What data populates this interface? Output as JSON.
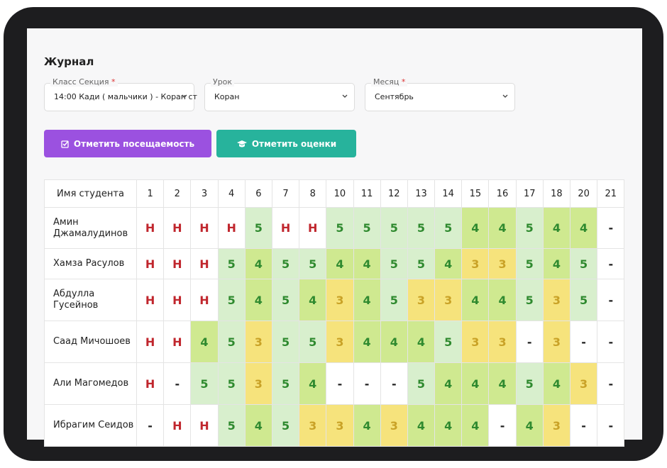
{
  "header": {
    "title": "Журнал"
  },
  "form": {
    "fields": [
      {
        "label": "Класс Секция",
        "marker": "*",
        "value": "14:00 Кади ( мальчики ) - Коран ст"
      },
      {
        "label": "Урок",
        "value": "Коран"
      },
      {
        "label": "Месяц",
        "marker": "*",
        "value": "Сентябрь"
      }
    ]
  },
  "buttons": [
    {
      "label": "Отметить посещаемость",
      "color": "#9b51e0"
    },
    {
      "label": "Отметить оценки",
      "color": "#27b39c"
    }
  ],
  "table": {
    "header": [
      "Имя студента",
      "1",
      "2",
      "3",
      "4",
      "6",
      "7",
      "8",
      "10",
      "11",
      "12",
      "13",
      "14",
      "15",
      "16",
      "17",
      "18",
      "20",
      "21"
    ],
    "cell_colors": {
      "5": "#d8efcd",
      "4": "#cfe990",
      "3": "#f6e37c"
    },
    "text_colors": {
      "Н": "#c0262d",
      "5": "#2f8a2f",
      "4": "#2f8a2f",
      "3": "#c9a227"
    },
    "rows": [
      {
        "name": "Амин Джамалудинов",
        "cells": [
          "Н",
          "Н",
          "Н",
          "Н",
          "5",
          "Н",
          "Н",
          "5",
          "5",
          "5",
          "5",
          "5",
          "4",
          "4",
          "5",
          "4",
          "4",
          "-"
        ]
      },
      {
        "name": "Хамза Расулов",
        "cells": [
          "Н",
          "Н",
          "Н",
          "5",
          "4",
          "5",
          "5",
          "4",
          "4",
          "5",
          "5",
          "4",
          "3",
          "3",
          "5",
          "4",
          "5",
          "-"
        ]
      },
      {
        "name": "Абдулла Гусейнов",
        "cells": [
          "Н",
          "Н",
          "Н",
          "5",
          "4",
          "5",
          "4",
          "3",
          "4",
          "5",
          "3",
          "3",
          "4",
          "4",
          "5",
          "3",
          "5",
          "-"
        ]
      },
      {
        "name": "Саад Мичошоев",
        "cells": [
          "Н",
          "Н",
          "4",
          "5",
          "3",
          "5",
          "5",
          "3",
          "4",
          "4",
          "4",
          "5",
          "3",
          "3",
          "-",
          "3",
          "-",
          "-"
        ]
      },
      {
        "name": "Али Магомедов",
        "cells": [
          "Н",
          "-",
          "5",
          "5",
          "3",
          "5",
          "4",
          "-",
          "-",
          "-",
          "5",
          "4",
          "4",
          "4",
          "5",
          "4",
          "3",
          "-"
        ]
      },
      {
        "name": "Ибрагим Сеидов",
        "cells": [
          "-",
          "Н",
          "Н",
          "5",
          "4",
          "5",
          "3",
          "3",
          "4",
          "3",
          "4",
          "4",
          "4",
          "-",
          "4",
          "3",
          "-",
          "-"
        ]
      }
    ]
  }
}
